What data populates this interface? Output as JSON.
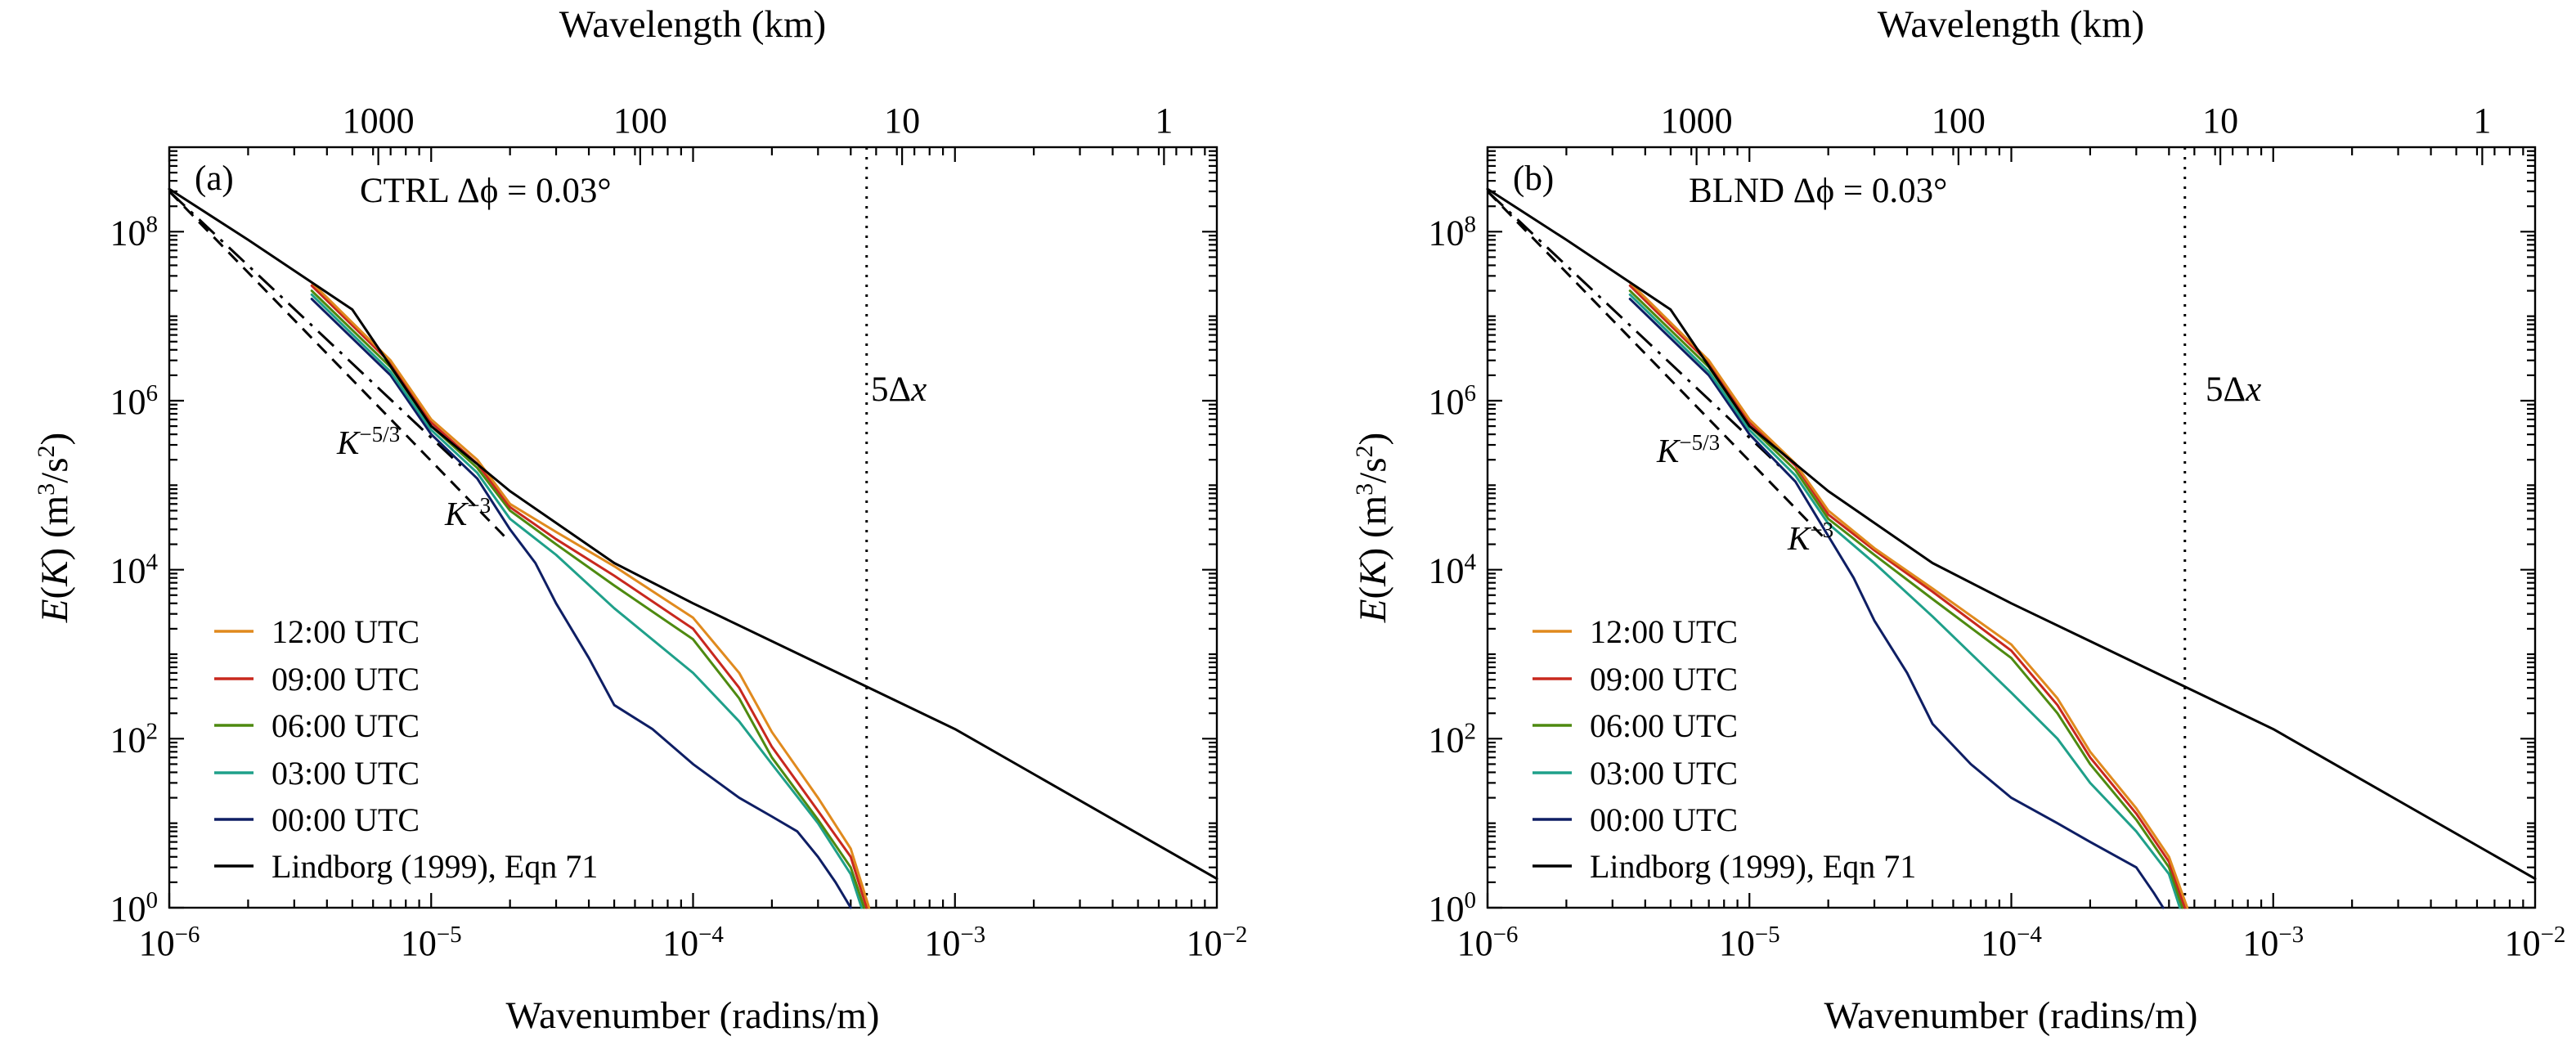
{
  "colors": {
    "utc12": "#E08A1E",
    "utc09": "#C8281E",
    "utc06": "#4E8A10",
    "utc03": "#1FA08A",
    "utc00": "#0E1E64",
    "lindborg": "#000000"
  },
  "chart_data": [
    {
      "type": "line",
      "panel_label": "(a)",
      "annotation": "CTRL Δϕ = 0.03°",
      "xlabel": "Wavenumber (radins/m)",
      "ylabel": "E(K) (m³/s²)",
      "top_xlabel": "Wavelength (km)",
      "x_scale": "log",
      "y_scale": "log",
      "xlim": [
        1e-06,
        0.01
      ],
      "ylim": [
        1,
        1000000000.0
      ],
      "xticks": [
        {
          "v": 1e-06,
          "b": "10",
          "e": "−6"
        },
        {
          "v": 1e-05,
          "b": "10",
          "e": "−5"
        },
        {
          "v": 0.0001,
          "b": "10",
          "e": "−4"
        },
        {
          "v": 0.001,
          "b": "10",
          "e": "−3"
        },
        {
          "v": 0.01,
          "b": "10",
          "e": "−2"
        }
      ],
      "yticks": [
        {
          "v": 1,
          "b": "10",
          "e": "0"
        },
        {
          "v": 100,
          "b": "10",
          "e": "2"
        },
        {
          "v": 10000,
          "b": "10",
          "e": "4"
        },
        {
          "v": 1000000,
          "b": "10",
          "e": "6"
        },
        {
          "v": 100000000,
          "b": "10",
          "e": "8"
        }
      ],
      "top_ticks": [
        {
          "km": 1000,
          "label": "1000"
        },
        {
          "km": 100,
          "label": "100"
        },
        {
          "km": 10,
          "label": "10"
        },
        {
          "km": 1,
          "label": "1"
        }
      ],
      "vline": {
        "x": 0.00046,
        "label_base": "5Δ",
        "label_var": "x"
      },
      "ref_slopes": [
        {
          "label_base": "K",
          "label_exp": "−5/3",
          "points": [
            [
              1e-06,
              300000000.0
            ],
            [
              1.3e-05,
              170000.0
            ]
          ]
        },
        {
          "label_base": "K",
          "label_exp": "−3",
          "points": [
            [
              1e-06,
              300000000.0
            ],
            [
              1.9e-05,
              25000.0
            ]
          ]
        }
      ],
      "lindborg": {
        "name": "Lindborg (1999), Eqn 71",
        "points": [
          [
            1e-06,
            320000000.0
          ],
          [
            2e-06,
            80000000.0
          ],
          [
            5e-06,
            12000000.0
          ],
          [
            1e-05,
            500000.0
          ],
          [
            2e-05,
            85000.0
          ],
          [
            5e-05,
            12000.0
          ],
          [
            0.0001,
            4000.0
          ],
          [
            0.001,
            130.0
          ],
          [
            0.01,
            2.2
          ]
        ]
      },
      "series": [
        {
          "name": "12:00 UTC",
          "color_key": "utc12",
          "points": [
            [
              3.5e-06,
              25000000.0
            ],
            [
              7e-06,
              3000000.0
            ],
            [
              1e-05,
              600000.0
            ],
            [
              1.5e-05,
              200000.0
            ],
            [
              2e-05,
              60000.0
            ],
            [
              3e-05,
              28000.0
            ],
            [
              5e-05,
              11000.0
            ],
            [
              0.0001,
              2700.0
            ],
            [
              0.00015,
              600.0
            ],
            [
              0.0002,
              120.0
            ],
            [
              0.0003,
              20
            ],
            [
              0.0004,
              5
            ],
            [
              0.00047,
              1
            ]
          ]
        },
        {
          "name": "09:00 UTC",
          "color_key": "utc09",
          "points": [
            [
              3.5e-06,
              23000000.0
            ],
            [
              7e-06,
              2800000.0
            ],
            [
              1e-05,
              550000.0
            ],
            [
              1.5e-05,
              180000.0
            ],
            [
              2e-05,
              55000.0
            ],
            [
              3e-05,
              23000.0
            ],
            [
              5e-05,
              8500.0
            ],
            [
              0.0001,
              2000.0
            ],
            [
              0.00015,
              400.0
            ],
            [
              0.0002,
              80
            ],
            [
              0.0003,
              14
            ],
            [
              0.0004,
              4
            ],
            [
              0.00046,
              1
            ]
          ]
        },
        {
          "name": "06:00 UTC",
          "color_key": "utc06",
          "points": [
            [
              3.5e-06,
              20000000.0
            ],
            [
              7e-06,
              2500000.0
            ],
            [
              1e-05,
              500000.0
            ],
            [
              1.5e-05,
              160000.0
            ],
            [
              2e-05,
              50000.0
            ],
            [
              3e-05,
              20000.0
            ],
            [
              5e-05,
              6500.0
            ],
            [
              0.0001,
              1500.0
            ],
            [
              0.00015,
              300.0
            ],
            [
              0.0002,
              60
            ],
            [
              0.0003,
              11
            ],
            [
              0.0004,
              3
            ],
            [
              0.00045,
              1
            ]
          ]
        },
        {
          "name": "03:00 UTC",
          "color_key": "utc03",
          "points": [
            [
              3.5e-06,
              18000000.0
            ],
            [
              7e-06,
              2200000.0
            ],
            [
              1e-05,
              450000.0
            ],
            [
              1.5e-05,
              140000.0
            ],
            [
              2e-05,
              40000.0
            ],
            [
              3e-05,
              15000.0
            ],
            [
              5e-05,
              3500.0
            ],
            [
              0.0001,
              600.0
            ],
            [
              0.00015,
              160.0
            ],
            [
              0.0002,
              50
            ],
            [
              0.0003,
              10
            ],
            [
              0.0004,
              2.5
            ],
            [
              0.00044,
              1
            ]
          ]
        },
        {
          "name": "00:00 UTC",
          "color_key": "utc00",
          "points": [
            [
              3.5e-06,
              16000000.0
            ],
            [
              7e-06,
              2000000.0
            ],
            [
              1e-05,
              400000.0
            ],
            [
              1.5e-05,
              120000.0
            ],
            [
              2e-05,
              30000.0
            ],
            [
              2.5e-05,
              12000.0
            ],
            [
              3e-05,
              4000.0
            ],
            [
              4e-05,
              900.0
            ],
            [
              5e-05,
              250.0
            ],
            [
              7e-05,
              130.0
            ],
            [
              0.0001,
              50
            ],
            [
              0.00015,
              20
            ],
            [
              0.0002,
              12
            ],
            [
              0.00025,
              8
            ],
            [
              0.0003,
              4
            ],
            [
              0.00035,
              2
            ],
            [
              0.0004,
              1
            ]
          ]
        }
      ]
    },
    {
      "type": "line",
      "panel_label": "(b)",
      "annotation": "BLND Δϕ = 0.03°",
      "xlabel": "Wavenumber (radins/m)",
      "ylabel": "E(K) (m³/s²)",
      "top_xlabel": "Wavelength (km)",
      "x_scale": "log",
      "y_scale": "log",
      "xlim": [
        1e-06,
        0.01
      ],
      "ylim": [
        1,
        1000000000.0
      ],
      "xticks": [
        {
          "v": 1e-06,
          "b": "10",
          "e": "−6"
        },
        {
          "v": 1e-05,
          "b": "10",
          "e": "−5"
        },
        {
          "v": 0.0001,
          "b": "10",
          "e": "−4"
        },
        {
          "v": 0.001,
          "b": "10",
          "e": "−3"
        },
        {
          "v": 0.01,
          "b": "10",
          "e": "−2"
        }
      ],
      "yticks": [
        {
          "v": 1,
          "b": "10",
          "e": "0"
        },
        {
          "v": 100,
          "b": "10",
          "e": "2"
        },
        {
          "v": 10000,
          "b": "10",
          "e": "4"
        },
        {
          "v": 1000000,
          "b": "10",
          "e": "6"
        },
        {
          "v": 100000000,
          "b": "10",
          "e": "8"
        }
      ],
      "top_ticks": [
        {
          "km": 1000,
          "label": "1000"
        },
        {
          "km": 100,
          "label": "100"
        },
        {
          "km": 10,
          "label": "10"
        },
        {
          "km": 1,
          "label": "1"
        }
      ],
      "vline": {
        "x": 0.00046,
        "label_base": "5Δ",
        "label_var": "x"
      },
      "ref_slopes": [
        {
          "label_base": "K",
          "label_exp": "−5/3",
          "points": [
            [
              1e-06,
              300000000.0
            ],
            [
              1.3e-05,
              170000.0
            ]
          ]
        },
        {
          "label_base": "K",
          "label_exp": "−3",
          "points": [
            [
              1e-06,
              300000000.0
            ],
            [
              1.9e-05,
              25000.0
            ]
          ]
        }
      ],
      "lindborg": {
        "name": "Lindborg (1999), Eqn 71",
        "points": [
          [
            1e-06,
            320000000.0
          ],
          [
            2e-06,
            80000000.0
          ],
          [
            5e-06,
            12000000.0
          ],
          [
            1e-05,
            500000.0
          ],
          [
            2e-05,
            85000.0
          ],
          [
            5e-05,
            12000.0
          ],
          [
            0.0001,
            4000.0
          ],
          [
            0.001,
            130.0
          ],
          [
            0.01,
            2.2
          ]
        ]
      },
      "series": [
        {
          "name": "12:00 UTC",
          "color_key": "utc12",
          "points": [
            [
              3.5e-06,
              25000000.0
            ],
            [
              7e-06,
              3000000.0
            ],
            [
              1e-05,
              600000.0
            ],
            [
              1.5e-05,
              180000.0
            ],
            [
              2e-05,
              50000.0
            ],
            [
              3e-05,
              18000.0
            ],
            [
              5e-05,
              6000.0
            ],
            [
              0.0001,
              1300.0
            ],
            [
              0.00015,
              300.0
            ],
            [
              0.0002,
              70
            ],
            [
              0.0003,
              15
            ],
            [
              0.0004,
              4
            ],
            [
              0.00047,
              1
            ]
          ]
        },
        {
          "name": "09:00 UTC",
          "color_key": "utc09",
          "points": [
            [
              3.5e-06,
              23000000.0
            ],
            [
              7e-06,
              2800000.0
            ],
            [
              1e-05,
              550000.0
            ],
            [
              1.5e-05,
              170000.0
            ],
            [
              2e-05,
              45000.0
            ],
            [
              3e-05,
              17000.0
            ],
            [
              5e-05,
              5500.0
            ],
            [
              0.0001,
              1100.0
            ],
            [
              0.00015,
              250.0
            ],
            [
              0.0002,
              60
            ],
            [
              0.0003,
              13
            ],
            [
              0.0004,
              3.5
            ],
            [
              0.00046,
              1
            ]
          ]
        },
        {
          "name": "06:00 UTC",
          "color_key": "utc06",
          "points": [
            [
              3.5e-06,
              20000000.0
            ],
            [
              7e-06,
              2500000.0
            ],
            [
              1e-05,
              500000.0
            ],
            [
              1.5e-05,
              150000.0
            ],
            [
              2e-05,
              40000.0
            ],
            [
              3e-05,
              15000.0
            ],
            [
              5e-05,
              4500.0
            ],
            [
              0.0001,
              900.0
            ],
            [
              0.00015,
              200.0
            ],
            [
              0.0002,
              50
            ],
            [
              0.0003,
              11
            ],
            [
              0.0004,
              3
            ],
            [
              0.00045,
              1
            ]
          ]
        },
        {
          "name": "03:00 UTC",
          "color_key": "utc03",
          "points": [
            [
              3.5e-06,
              18000000.0
            ],
            [
              7e-06,
              2200000.0
            ],
            [
              1e-05,
              450000.0
            ],
            [
              1.5e-05,
              130000.0
            ],
            [
              2e-05,
              35000.0
            ],
            [
              3e-05,
              12000.0
            ],
            [
              5e-05,
              2800.0
            ],
            [
              0.0001,
              350.0
            ],
            [
              0.00015,
              100.0
            ],
            [
              0.0002,
              30
            ],
            [
              0.0003,
              8
            ],
            [
              0.0004,
              2.5
            ],
            [
              0.00044,
              1
            ]
          ]
        },
        {
          "name": "00:00 UTC",
          "color_key": "utc00",
          "points": [
            [
              3.5e-06,
              16000000.0
            ],
            [
              7e-06,
              2000000.0
            ],
            [
              1e-05,
              400000.0
            ],
            [
              1.5e-05,
              110000.0
            ],
            [
              2e-05,
              25000.0
            ],
            [
              2.5e-05,
              8000.0
            ],
            [
              3e-05,
              2500.0
            ],
            [
              4e-05,
              600.0
            ],
            [
              5e-05,
              150.0
            ],
            [
              7e-05,
              50
            ],
            [
              0.0001,
              20
            ],
            [
              0.00015,
              10
            ],
            [
              0.0002,
              6
            ],
            [
              0.0003,
              3
            ],
            [
              0.00035,
              1.5
            ],
            [
              0.00038,
              1
            ]
          ]
        }
      ]
    }
  ]
}
